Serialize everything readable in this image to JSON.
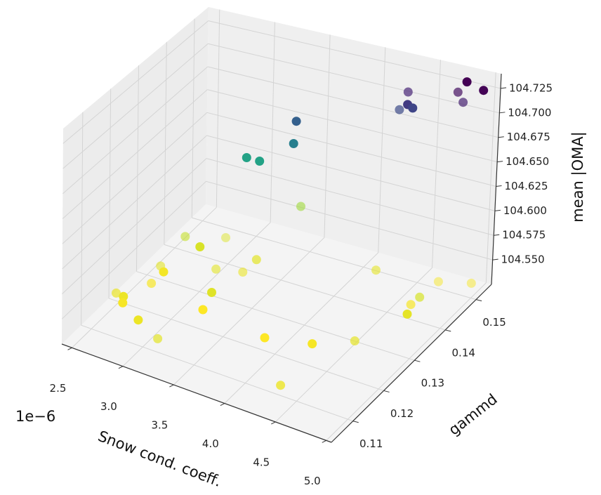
{
  "chart_data": {
    "type": "scatter",
    "projection": "3d",
    "title": "",
    "xlabel": "Snow cond. coeff.",
    "x_offset_label": "1e−6",
    "ylabel": "gammd",
    "zlabel": "mean |OMA|",
    "xlim": [
      2.4,
      5.05
    ],
    "ylim": [
      0.103,
      0.155
    ],
    "zlim": [
      104.525,
      104.74
    ],
    "xticks": [
      "2.5",
      "3.0",
      "3.5",
      "4.0",
      "4.5",
      "5.0"
    ],
    "yticks": [
      "0.11",
      "0.12",
      "0.13",
      "0.14",
      "0.15"
    ],
    "zticks": [
      "104.550",
      "104.575",
      "104.600",
      "104.625",
      "104.650",
      "104.675",
      "104.700",
      "104.725"
    ],
    "grid": true,
    "colormap": "viridis",
    "color_encodes": "z",
    "pane_color": "#f2f2f2",
    "grid_color": "#d4d4d4",
    "points": [
      {
        "x": 4.98,
        "y": 0.152,
        "z": 104.73,
        "alpha": 1.0
      },
      {
        "x": 4.8,
        "y": 0.153,
        "z": 104.731,
        "alpha": 1.0
      },
      {
        "x": 4.75,
        "y": 0.152,
        "z": 104.722,
        "alpha": 0.7
      },
      {
        "x": 4.8,
        "y": 0.152,
        "z": 104.713,
        "alpha": 0.7
      },
      {
        "x": 4.3,
        "y": 0.152,
        "z": 104.71,
        "alpha": 0.7
      },
      {
        "x": 4.3,
        "y": 0.152,
        "z": 104.697,
        "alpha": 1.0
      },
      {
        "x": 4.32,
        "y": 0.153,
        "z": 104.691,
        "alpha": 1.0
      },
      {
        "x": 4.2,
        "y": 0.153,
        "z": 104.686,
        "alpha": 0.7
      },
      {
        "x": 3.45,
        "y": 0.146,
        "z": 104.672,
        "alpha": 1.0
      },
      {
        "x": 3.43,
        "y": 0.146,
        "z": 104.648,
        "alpha": 1.0
      },
      {
        "x": 3.0,
        "y": 0.146,
        "z": 104.62,
        "alpha": 1.0
      },
      {
        "x": 3.12,
        "y": 0.146,
        "z": 104.62,
        "alpha": 1.0
      },
      {
        "x": 3.38,
        "y": 0.151,
        "z": 104.566,
        "alpha": 0.6
      },
      {
        "x": 5.0,
        "y": 0.15,
        "z": 104.54,
        "alpha": 0.5
      },
      {
        "x": 4.75,
        "y": 0.148,
        "z": 104.54,
        "alpha": 0.5
      },
      {
        "x": 4.8,
        "y": 0.14,
        "z": 104.55,
        "alpha": 0.7
      },
      {
        "x": 4.8,
        "y": 0.136,
        "z": 104.545,
        "alpha": 1.0
      },
      {
        "x": 4.62,
        "y": 0.125,
        "z": 104.545,
        "alpha": 0.7
      },
      {
        "x": 4.25,
        "y": 0.145,
        "z": 104.545,
        "alpha": 0.6
      },
      {
        "x": 4.72,
        "y": 0.14,
        "z": 104.54,
        "alpha": 0.7
      },
      {
        "x": 4.3,
        "y": 0.122,
        "z": 104.54,
        "alpha": 1.0
      },
      {
        "x": 3.9,
        "y": 0.12,
        "z": 104.538,
        "alpha": 1.0
      },
      {
        "x": 4.4,
        "y": 0.108,
        "z": 104.543,
        "alpha": 0.8
      },
      {
        "x": 2.95,
        "y": 0.141,
        "z": 104.548,
        "alpha": 0.5
      },
      {
        "x": 2.7,
        "y": 0.136,
        "z": 104.555,
        "alpha": 0.6
      },
      {
        "x": 2.84,
        "y": 0.136,
        "z": 104.549,
        "alpha": 1.0
      },
      {
        "x": 3.1,
        "y": 0.132,
        "z": 104.546,
        "alpha": 0.6
      },
      {
        "x": 3.32,
        "y": 0.138,
        "z": 104.546,
        "alpha": 0.7
      },
      {
        "x": 3.3,
        "y": 0.134,
        "z": 104.544,
        "alpha": 0.6
      },
      {
        "x": 2.68,
        "y": 0.128,
        "z": 104.546,
        "alpha": 0.6
      },
      {
        "x": 2.71,
        "y": 0.128,
        "z": 104.541,
        "alpha": 1.0
      },
      {
        "x": 2.7,
        "y": 0.124,
        "z": 104.54,
        "alpha": 0.7
      },
      {
        "x": 3.25,
        "y": 0.125,
        "z": 104.547,
        "alpha": 1.0
      },
      {
        "x": 3.25,
        "y": 0.122,
        "z": 104.538,
        "alpha": 1.0
      },
      {
        "x": 2.55,
        "y": 0.117,
        "z": 104.544,
        "alpha": 0.7
      },
      {
        "x": 2.62,
        "y": 0.117,
        "z": 104.543,
        "alpha": 1.0
      },
      {
        "x": 2.64,
        "y": 0.116,
        "z": 104.54,
        "alpha": 1.0
      },
      {
        "x": 2.9,
        "y": 0.112,
        "z": 104.543,
        "alpha": 1.0
      },
      {
        "x": 3.2,
        "y": 0.108,
        "z": 104.546,
        "alpha": 0.7
      }
    ]
  }
}
